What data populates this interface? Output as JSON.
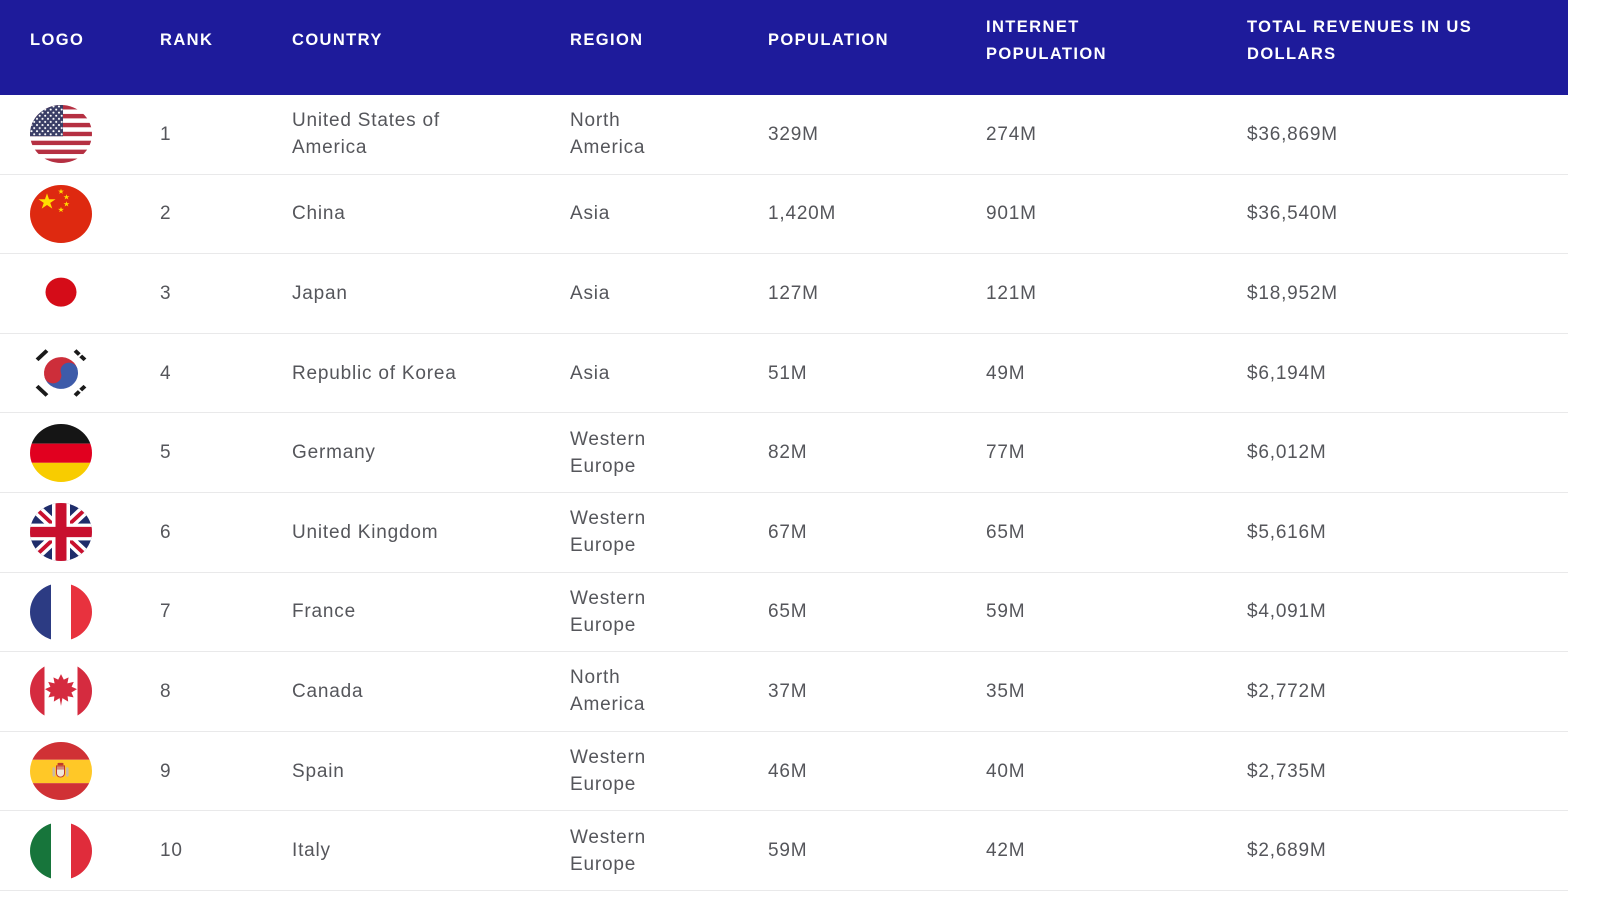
{
  "columns": [
    "LOGO",
    "RANK",
    "COUNTRY",
    "REGION",
    "POPULATION",
    "INTERNET POPULATION",
    "TOTAL REVENUES IN US DOLLARS"
  ],
  "rows": [
    {
      "flag_icon": "flag-usa-icon",
      "rank": "1",
      "country": "United States of America",
      "region": "North America",
      "population": "329M",
      "internet_population": "274M",
      "total_revenues": "$36,869M"
    },
    {
      "flag_icon": "flag-china-icon",
      "rank": "2",
      "country": "China",
      "region": "Asia",
      "population": "1,420M",
      "internet_population": "901M",
      "total_revenues": "$36,540M"
    },
    {
      "flag_icon": "flag-japan-icon",
      "rank": "3",
      "country": "Japan",
      "region": "Asia",
      "population": "127M",
      "internet_population": "121M",
      "total_revenues": "$18,952M"
    },
    {
      "flag_icon": "flag-korea-icon",
      "rank": "4",
      "country": "Republic of Korea",
      "region": "Asia",
      "population": "51M",
      "internet_population": "49M",
      "total_revenues": "$6,194M"
    },
    {
      "flag_icon": "flag-germany-icon",
      "rank": "5",
      "country": "Germany",
      "region": "Western Europe",
      "population": "82M",
      "internet_population": "77M",
      "total_revenues": "$6,012M"
    },
    {
      "flag_icon": "flag-uk-icon",
      "rank": "6",
      "country": "United Kingdom",
      "region": "Western Europe",
      "population": "67M",
      "internet_population": "65M",
      "total_revenues": "$5,616M"
    },
    {
      "flag_icon": "flag-france-icon",
      "rank": "7",
      "country": "France",
      "region": "Western Europe",
      "population": "65M",
      "internet_population": "59M",
      "total_revenues": "$4,091M"
    },
    {
      "flag_icon": "flag-canada-icon",
      "rank": "8",
      "country": "Canada",
      "region": "North America",
      "population": "37M",
      "internet_population": "35M",
      "total_revenues": "$2,772M"
    },
    {
      "flag_icon": "flag-spain-icon",
      "rank": "9",
      "country": "Spain",
      "region": "Western Europe",
      "population": "46M",
      "internet_population": "40M",
      "total_revenues": "$2,735M"
    },
    {
      "flag_icon": "flag-italy-icon",
      "rank": "10",
      "country": "Italy",
      "region": "Western Europe",
      "population": "59M",
      "internet_population": "42M",
      "total_revenues": "$2,689M"
    }
  ],
  "colors": {
    "header_background": "#1e1b9b",
    "header_text": "#ffffff",
    "body_text": "#55565b",
    "row_divider": "#e9e9ea"
  }
}
